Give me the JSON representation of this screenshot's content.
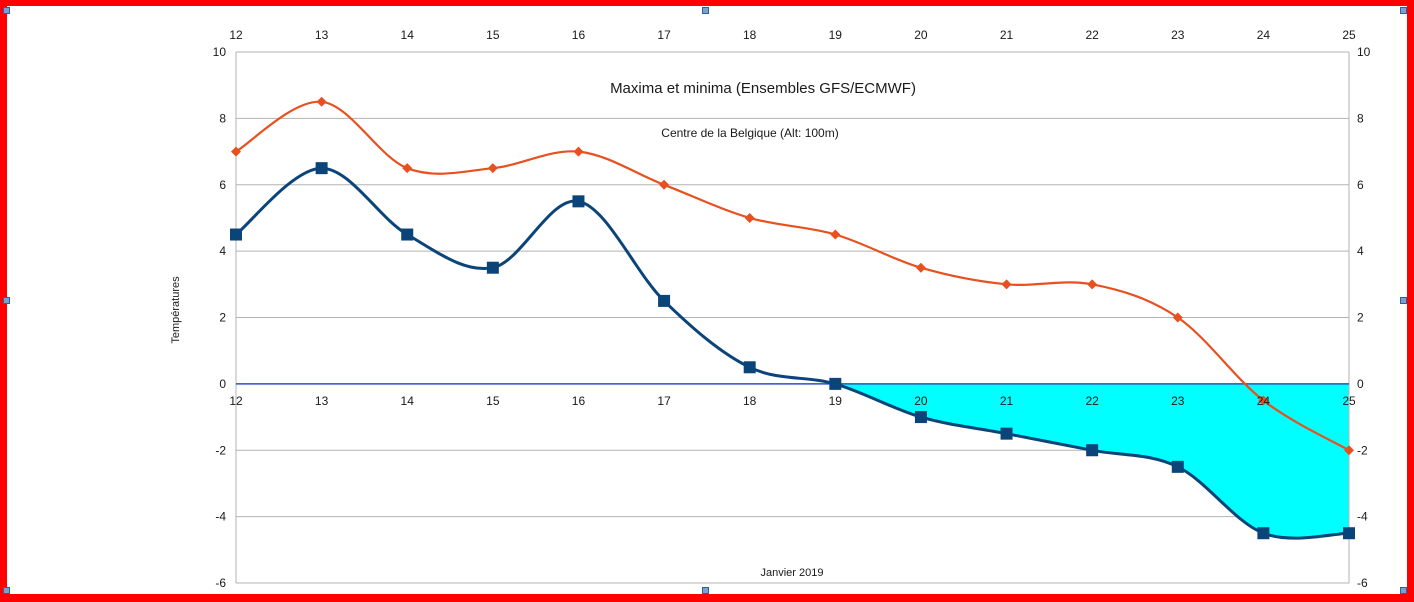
{
  "chart_data": {
    "type": "line",
    "title": "Maxima et minima (Ensembles GFS/ECMWF)",
    "subtitle": "Centre de la Belgique (Alt: 100m)",
    "xlabel": "Janvier 2019",
    "ylabel": "Températures",
    "x": [
      12,
      13,
      14,
      15,
      16,
      17,
      18,
      19,
      20,
      21,
      22,
      23,
      24,
      25
    ],
    "x_tick_labels": [
      "12",
      "13",
      "14",
      "15",
      "16",
      "17",
      "18",
      "19",
      "20",
      "21",
      "22",
      "23",
      "24",
      "25"
    ],
    "ylim": [
      -6,
      10
    ],
    "y_ticks": [
      -6,
      -4,
      -2,
      0,
      2,
      4,
      6,
      8,
      10
    ],
    "y_tick_labels": [
      "-6",
      "-4",
      "-2",
      "0",
      "2",
      "4",
      "6",
      "8",
      "10"
    ],
    "grid": true,
    "smooth": true,
    "series": [
      {
        "key": "maxima",
        "color": "#e8501f",
        "marker": "diamond",
        "values": [
          7,
          8.5,
          6.5,
          6.5,
          7,
          6,
          5,
          4.5,
          3.5,
          3,
          3,
          2,
          -0.5,
          -2
        ]
      },
      {
        "key": "minima",
        "color": "#0b4478",
        "marker": "square",
        "values": [
          4.5,
          6.5,
          4.5,
          3.5,
          5.5,
          2.5,
          0.5,
          0,
          -1,
          -1.5,
          -2,
          -2.5,
          -4.5,
          -4.5
        ]
      }
    ],
    "below_zero_fill_color": "#00ffff",
    "zero_line_color": "#2b50c8"
  }
}
